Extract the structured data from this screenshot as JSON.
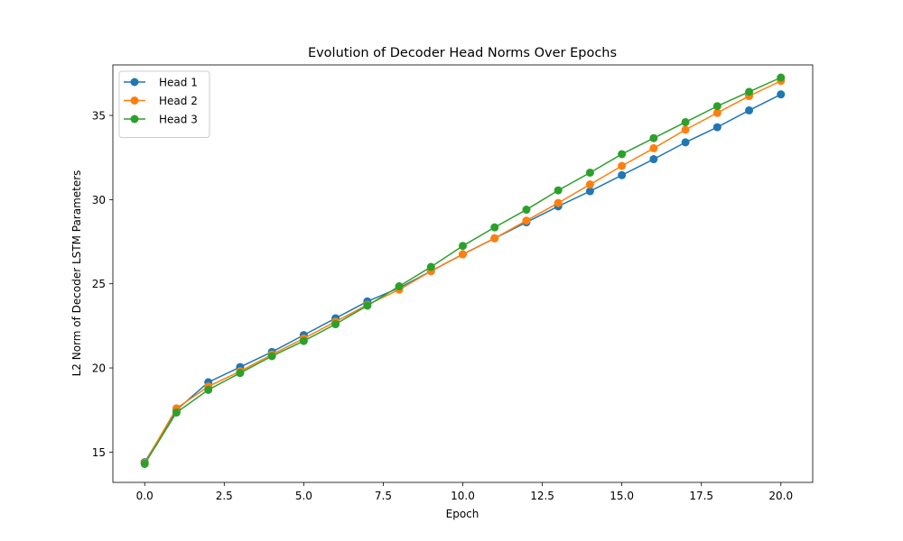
{
  "chart_data": {
    "type": "line",
    "title": "Evolution of Decoder Head Norms Over Epochs",
    "xlabel": "Epoch",
    "ylabel": "L2 Norm of Decoder LSTM Parameters",
    "xlim": [
      -1.0,
      21.0
    ],
    "ylim": [
      13.2,
      38.0
    ],
    "xticks": [
      0.0,
      2.5,
      5.0,
      7.5,
      10.0,
      12.5,
      15.0,
      17.5,
      20.0
    ],
    "xtick_labels": [
      "0.0",
      "2.5",
      "5.0",
      "7.5",
      "10.0",
      "12.5",
      "15.0",
      "17.5",
      "20.0"
    ],
    "yticks": [
      15,
      20,
      25,
      30,
      35
    ],
    "ytick_labels": [
      "15",
      "20",
      "25",
      "30",
      "35"
    ],
    "grid": false,
    "legend_position": "top-left",
    "x": [
      0,
      1,
      2,
      3,
      4,
      5,
      6,
      7,
      8,
      9,
      10,
      11,
      12,
      13,
      14,
      15,
      16,
      17,
      18,
      19,
      20
    ],
    "series": [
      {
        "name": "Head 1",
        "color": "#1f77b4",
        "values": [
          14.4,
          17.5,
          19.15,
          20.05,
          20.95,
          21.95,
          22.95,
          23.95,
          24.75,
          25.75,
          26.75,
          27.7,
          28.65,
          29.6,
          30.5,
          31.45,
          32.4,
          33.4,
          34.3,
          35.3,
          36.25
        ]
      },
      {
        "name": "Head 2",
        "color": "#ff7f0e",
        "values": [
          14.35,
          17.6,
          18.9,
          19.8,
          20.8,
          21.75,
          22.75,
          23.75,
          24.65,
          25.75,
          26.75,
          27.7,
          28.75,
          29.8,
          30.9,
          32.0,
          33.05,
          34.15,
          35.15,
          36.15,
          37.05
        ]
      },
      {
        "name": "Head 3",
        "color": "#2ca02c",
        "values": [
          14.3,
          17.35,
          18.7,
          19.7,
          20.7,
          21.6,
          22.6,
          23.7,
          24.85,
          26.0,
          27.25,
          28.35,
          29.4,
          30.55,
          31.6,
          32.7,
          33.65,
          34.6,
          35.55,
          36.4,
          37.25
        ]
      }
    ]
  }
}
